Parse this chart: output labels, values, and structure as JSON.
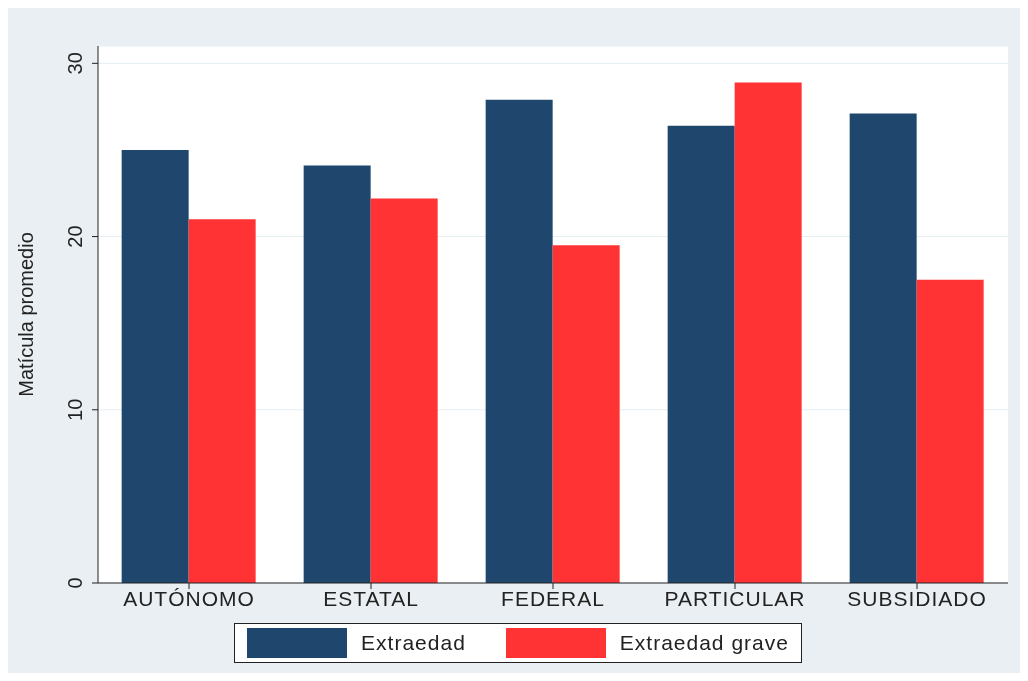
{
  "chart_data": {
    "type": "bar",
    "ylabel": "Matícula promedio",
    "categories": [
      "AUTÓNOMO",
      "ESTATAL",
      "FEDERAL",
      "PARTICULAR",
      "SUBSIDIADO"
    ],
    "series": [
      {
        "name": "Extraedad",
        "color": "#1f476e",
        "values": [
          25,
          24.1,
          27.9,
          26.4,
          27.1
        ]
      },
      {
        "name": "Extraedad grave",
        "color": "#ff3333",
        "values": [
          21,
          22.2,
          19.5,
          28.9,
          17.5
        ]
      }
    ],
    "ylim": [
      0,
      31
    ],
    "yticks": [
      0,
      10,
      20,
      30
    ],
    "grid": "y",
    "legend": "bottom"
  }
}
